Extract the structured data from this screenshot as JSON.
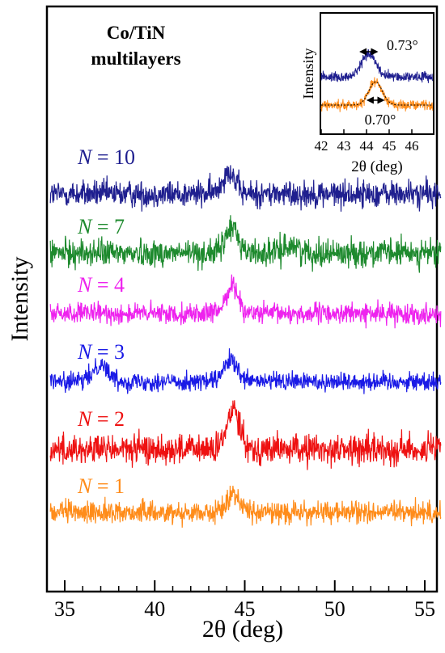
{
  "chart_data": {
    "type": "line",
    "title_lines": [
      "Co/TiN",
      "multilayers"
    ],
    "xlabel": "2θ (deg)",
    "ylabel": "Intensity",
    "xlim": [
      34,
      56
    ],
    "xticks": [
      35,
      40,
      45,
      50,
      55
    ],
    "grid": false,
    "series": [
      {
        "name": "N = 10",
        "N": "10",
        "color": "#1f1f8f",
        "peak_center": 44.1,
        "peak_height": 1.0,
        "noise": 1.0,
        "extra_peaks": []
      },
      {
        "name": "N = 7",
        "N": "7",
        "color": "#1e8a2e",
        "peak_center": 44.3,
        "peak_height": 1.1,
        "noise": 1.0,
        "extra_peaks": [
          {
            "center": 47.6,
            "height": 0.4
          }
        ]
      },
      {
        "name": "N = 4",
        "N": "4",
        "color": "#ee22ee",
        "peak_center": 44.3,
        "peak_height": 1.2,
        "noise": 0.75,
        "extra_peaks": []
      },
      {
        "name": "N = 3",
        "N": "3",
        "color": "#1a1ae6",
        "peak_center": 44.2,
        "peak_height": 0.9,
        "noise": 0.7,
        "extra_peaks": [
          {
            "center": 37.0,
            "height": 0.9
          }
        ]
      },
      {
        "name": "N = 2",
        "N": "2",
        "color": "#ee1111",
        "peak_center": 44.4,
        "peak_height": 1.8,
        "noise": 1.1,
        "extra_peaks": []
      },
      {
        "name": "N = 1",
        "N": "1",
        "color": "#ff8c1a",
        "peak_center": 44.4,
        "peak_height": 0.8,
        "noise": 0.8,
        "extra_peaks": []
      }
    ],
    "inset": {
      "xlabel": "2θ (deg)",
      "ylabel": "Intensity",
      "xlim": [
        42,
        47
      ],
      "xticks": [
        42,
        43,
        44,
        45,
        46
      ],
      "series": [
        {
          "name": "upper",
          "color": "#1f1f8f",
          "peak_center": 44.1,
          "fwhm_deg": 0.73,
          "fwhm_label": "0.73°"
        },
        {
          "name": "lower",
          "color": "#ff8c1a",
          "peak_center": 44.4,
          "fwhm_deg": 0.7,
          "fwhm_label": "0.70°"
        }
      ]
    }
  }
}
